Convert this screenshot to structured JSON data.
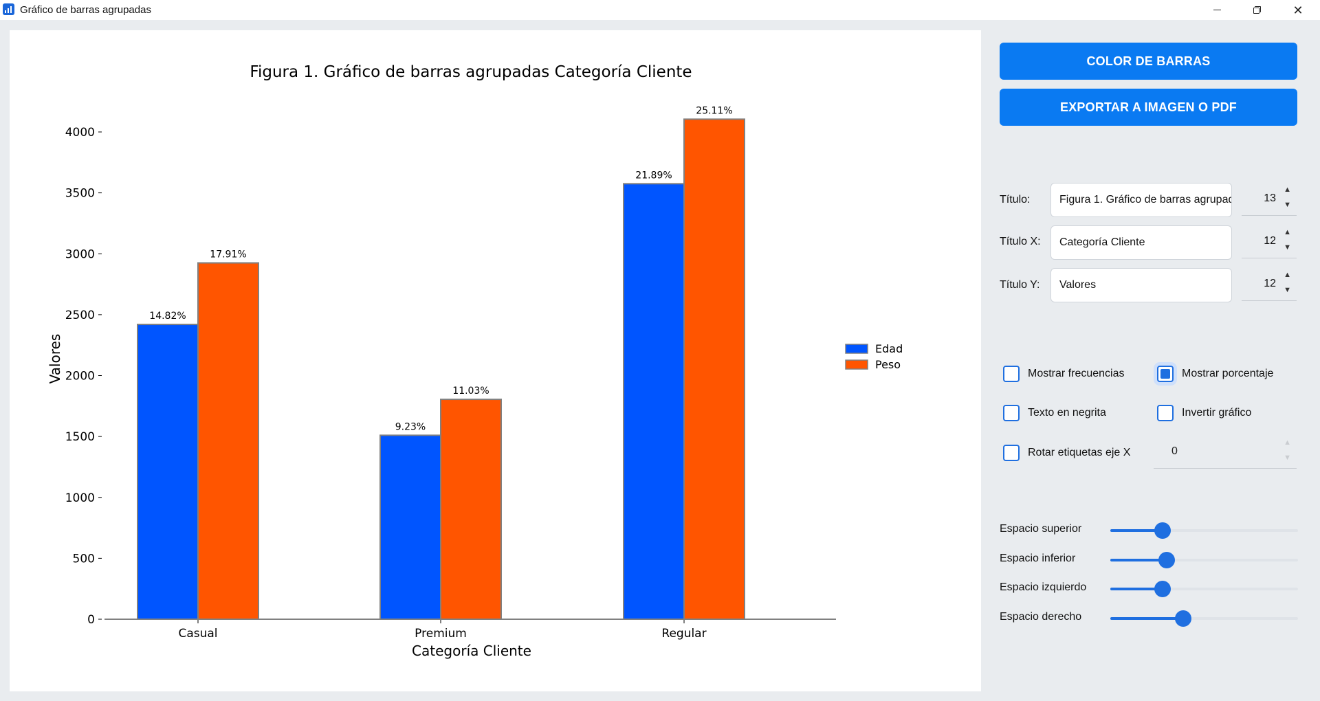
{
  "window": {
    "title": "Gráfico de barras agrupadas",
    "minimize_icon": "minimize-icon",
    "restore_icon": "restore-icon",
    "close_icon": "close-icon"
  },
  "chart_data": {
    "type": "bar",
    "title": "Figura 1. Gráfico de barras agrupadas Categoría Cliente",
    "xlabel": "Categoría Cliente",
    "ylabel": "Valores",
    "categories": [
      "Casual",
      "Premium",
      "Regular"
    ],
    "series": [
      {
        "name": "Edad",
        "values": [
          2420,
          1510,
          3575
        ],
        "labels": [
          "14.82%",
          "9.23%",
          "21.89%"
        ],
        "color": "#0055ff"
      },
      {
        "name": "Peso",
        "values": [
          2925,
          1805,
          4105
        ],
        "labels": [
          "17.91%",
          "11.03%",
          "25.11%"
        ],
        "color": "#ff5500"
      }
    ],
    "ylim": [
      0,
      4250
    ],
    "yticks": [
      0,
      500,
      1000,
      1500,
      2000,
      2500,
      3000,
      3500,
      4000
    ],
    "legend": "center-right",
    "grid": false,
    "bar_edge_color": "#808080"
  },
  "controls": {
    "color_button": "COLOR DE BARRAS",
    "export_button": "EXPORTAR A IMAGEN O PDF",
    "title_label": "Título:",
    "title_value": "Figura 1. Gráfico de barras agrupadas Categoría Cliente",
    "title_size": "13",
    "xtitle_label": "Título X:",
    "xtitle_value": "Categoría Cliente",
    "xtitle_size": "12",
    "ytitle_label": "Título Y:",
    "ytitle_value": "Valores",
    "ytitle_size": "12",
    "show_freq_label": "Mostrar frecuencias",
    "show_freq": false,
    "show_pct_label": "Mostrar porcentaje",
    "show_pct": true,
    "bold_label": "Texto en negrita",
    "bold": false,
    "invert_label": "Invertir gráfico",
    "invert": false,
    "rotate_label": "Rotar etiquetas eje X",
    "rotate": false,
    "rotate_value": "0",
    "spin_up": "▲",
    "spin_down": "▼",
    "sliders": [
      {
        "label": "Espacio superior",
        "value": 0.28
      },
      {
        "label": "Espacio inferior",
        "value": 0.3
      },
      {
        "label": "Espacio izquierdo",
        "value": 0.28
      },
      {
        "label": "Espacio derecho",
        "value": 0.39
      }
    ],
    "accent_color": "#0a7af2"
  }
}
